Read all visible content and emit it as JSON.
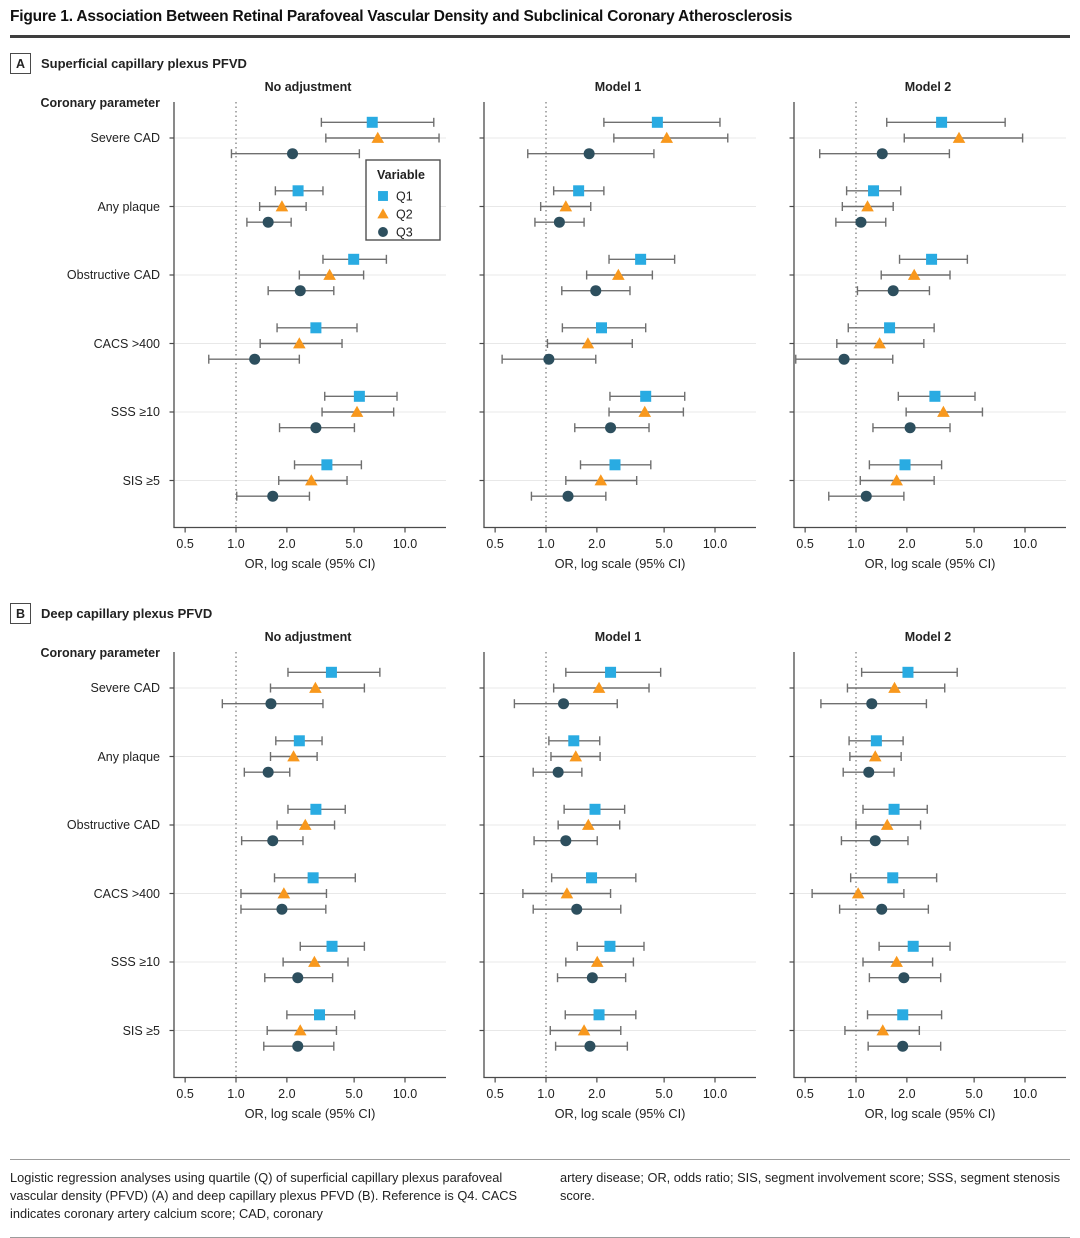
{
  "figure": {
    "title": "Figure 1. Association Between Retinal Parafoveal Vascular Density and Subclinical Coronary Atherosclerosis"
  },
  "row_header": "Coronary parameter",
  "legend": {
    "title": "Variable",
    "items": [
      {
        "label": "Q1",
        "marker": "square-icon"
      },
      {
        "label": "Q2",
        "marker": "triangle-icon"
      },
      {
        "label": "Q3",
        "marker": "circle-icon"
      }
    ]
  },
  "colors": {
    "q1": "#29abe2",
    "q2": "#f8981d",
    "q3": "#2d4f5e",
    "error_bar": "#6f6f6f",
    "grid": "#e8e8e8",
    "axis": "#4a4a4a",
    "reference_line": "#5a5a5a"
  },
  "axis": {
    "tick_values": [
      0.5,
      1,
      2,
      5,
      10
    ],
    "tick_labels": [
      "0.5",
      "1.0",
      "2.0",
      "5.0",
      "10.0"
    ],
    "label": "OR, log scale (95% CI)"
  },
  "footnote": {
    "left": "Logistic regression analyses using quartile (Q) of superficial capillary plexus parafoveal vascular density (PFVD) (A) and deep capillary plexus PFVD (B). Reference is Q4. CACS indicates coronary artery calcium score; CAD, coronary",
    "right": "artery disease; OR, odds ratio; SIS, segment involvement score; SSS, segment stenosis score."
  },
  "chart_data": [
    {
      "type": "forest",
      "panel": "A",
      "title": "Superficial capillary plexus PFVD",
      "xlabel": "OR, log scale (95% CI)",
      "x_scale": "log",
      "x_ticks": [
        0.5,
        1,
        2,
        5,
        10
      ],
      "reference_value": 1.0,
      "categories": [
        "Severe CAD",
        "Any plaque",
        "Obstructive CAD",
        "CACS >400",
        "SSS ≥10",
        "SIS ≥5"
      ],
      "models": [
        {
          "name": "No adjustment",
          "show_legend": true,
          "series": [
            {
              "name": "Q1",
              "or": [
                6.4,
                2.33,
                4.97,
                2.97,
                5.37,
                3.45
              ],
              "ci_low": [
                3.2,
                1.71,
                3.27,
                1.75,
                3.35,
                2.22
              ],
              "ci_high": [
                14.8,
                3.27,
                7.76,
                5.2,
                8.97,
                5.52
              ]
            },
            {
              "name": "Q2",
              "or": [
                6.9,
                1.87,
                3.58,
                2.37,
                5.2,
                2.79
              ],
              "ci_low": [
                3.4,
                1.38,
                2.37,
                1.39,
                3.23,
                1.79
              ],
              "ci_high": [
                15.9,
                2.6,
                5.69,
                4.24,
                8.57,
                4.54
              ]
            },
            {
              "name": "Q3",
              "or": [
                2.16,
                1.55,
                2.4,
                1.29,
                2.97,
                1.65
              ],
              "ci_low": [
                0.94,
                1.16,
                1.55,
                0.69,
                1.81,
                1.01
              ],
              "ci_high": [
                5.37,
                2.12,
                3.79,
                2.37,
                5.02,
                2.72
              ]
            }
          ]
        },
        {
          "name": "Model 1",
          "show_legend": false,
          "series": [
            {
              "name": "Q1",
              "or": [
                4.56,
                1.56,
                3.63,
                2.13,
                3.89,
                2.56
              ],
              "ci_low": [
                2.2,
                1.11,
                2.36,
                1.25,
                2.39,
                1.6
              ],
              "ci_high": [
                10.7,
                2.2,
                5.77,
                3.89,
                6.62,
                4.17
              ]
            },
            {
              "name": "Q2",
              "or": [
                5.18,
                1.31,
                2.68,
                1.77,
                3.84,
                2.11
              ],
              "ci_low": [
                2.52,
                0.93,
                1.74,
                1.02,
                2.36,
                1.31
              ],
              "ci_high": [
                11.9,
                1.84,
                4.26,
                3.24,
                6.5,
                3.44
              ]
            },
            {
              "name": "Q3",
              "or": [
                1.8,
                1.2,
                1.97,
                1.04,
                2.41,
                1.35
              ],
              "ci_low": [
                0.78,
                0.86,
                1.24,
                0.55,
                1.48,
                0.82
              ],
              "ci_high": [
                4.35,
                1.68,
                3.14,
                1.97,
                4.07,
                2.26
              ]
            }
          ]
        },
        {
          "name": "Model 2",
          "show_legend": false,
          "series": [
            {
              "name": "Q1",
              "or": [
                3.21,
                1.27,
                2.8,
                1.58,
                2.93,
                1.95
              ],
              "ci_low": [
                1.52,
                0.88,
                1.81,
                0.9,
                1.78,
                1.2
              ],
              "ci_high": [
                7.63,
                1.84,
                4.56,
                2.9,
                5.06,
                3.21
              ]
            },
            {
              "name": "Q2",
              "or": [
                4.07,
                1.17,
                2.21,
                1.38,
                3.29,
                1.74
              ],
              "ci_low": [
                1.93,
                0.83,
                1.41,
                0.77,
                1.98,
                1.06
              ],
              "ci_high": [
                9.68,
                1.66,
                3.6,
                2.52,
                5.6,
                2.9
              ]
            },
            {
              "name": "Q3",
              "or": [
                1.43,
                1.07,
                1.66,
                0.85,
                2.09,
                1.15
              ],
              "ci_low": [
                0.61,
                0.76,
                1.02,
                0.44,
                1.26,
                0.69
              ],
              "ci_high": [
                3.57,
                1.5,
                2.72,
                1.65,
                3.6,
                1.92
              ]
            }
          ]
        }
      ]
    },
    {
      "type": "forest",
      "panel": "B",
      "title": "Deep capillary plexus PFVD",
      "xlabel": "OR, log scale (95% CI)",
      "x_scale": "log",
      "x_ticks": [
        0.5,
        1,
        2,
        5,
        10
      ],
      "reference_value": 1.0,
      "categories": [
        "Severe CAD",
        "Any plaque",
        "Obstructive CAD",
        "CACS >400",
        "SSS ≥10",
        "SIS ≥5"
      ],
      "models": [
        {
          "name": "No adjustment",
          "show_legend": false,
          "series": [
            {
              "name": "Q1",
              "or": [
                3.67,
                2.37,
                2.97,
                2.86,
                3.7,
                3.12
              ],
              "ci_low": [
                2.03,
                1.72,
                2.03,
                1.69,
                2.4,
                2.0
              ],
              "ci_high": [
                7.1,
                3.23,
                4.43,
                5.08,
                5.75,
                5.04
              ]
            },
            {
              "name": "Q2",
              "or": [
                2.95,
                2.19,
                2.57,
                1.92,
                2.91,
                2.4
              ],
              "ci_low": [
                1.6,
                1.6,
                1.75,
                1.07,
                1.9,
                1.53
              ],
              "ci_high": [
                5.75,
                3.02,
                3.83,
                3.43,
                4.6,
                3.93
              ]
            },
            {
              "name": "Q3",
              "or": [
                1.61,
                1.55,
                1.65,
                1.87,
                2.32,
                2.32
              ],
              "ci_low": [
                0.83,
                1.12,
                1.08,
                1.07,
                1.48,
                1.46
              ],
              "ci_high": [
                3.27,
                2.08,
                2.49,
                3.4,
                3.73,
                3.79
              ]
            }
          ]
        },
        {
          "name": "Model 1",
          "show_legend": false,
          "series": [
            {
              "name": "Q1",
              "or": [
                2.41,
                1.46,
                1.95,
                1.86,
                2.39,
                2.06
              ],
              "ci_low": [
                1.31,
                1.04,
                1.28,
                1.08,
                1.53,
                1.3
              ],
              "ci_high": [
                4.77,
                2.08,
                2.92,
                3.4,
                3.8,
                3.4
              ]
            },
            {
              "name": "Q2",
              "or": [
                2.06,
                1.5,
                1.78,
                1.33,
                2.01,
                1.68
              ],
              "ci_low": [
                1.11,
                1.07,
                1.18,
                0.73,
                1.31,
                1.06
              ],
              "ci_high": [
                4.07,
                2.09,
                2.73,
                2.41,
                3.29,
                2.77
              ]
            },
            {
              "name": "Q3",
              "or": [
                1.27,
                1.18,
                1.31,
                1.52,
                1.88,
                1.82
              ],
              "ci_low": [
                0.65,
                0.84,
                0.85,
                0.84,
                1.17,
                1.14
              ],
              "ci_high": [
                2.64,
                1.63,
                2.01,
                2.77,
                2.96,
                3.03
              ]
            }
          ]
        },
        {
          "name": "Model 2",
          "show_legend": false,
          "series": [
            {
              "name": "Q1",
              "or": [
                2.03,
                1.32,
                1.68,
                1.65,
                2.18,
                1.89
              ],
              "ci_low": [
                1.08,
                0.91,
                1.1,
                0.93,
                1.37,
                1.17
              ],
              "ci_high": [
                3.97,
                1.9,
                2.64,
                3.0,
                3.6,
                3.21
              ]
            },
            {
              "name": "Q2",
              "or": [
                1.69,
                1.3,
                1.53,
                1.03,
                1.74,
                1.44
              ],
              "ci_low": [
                0.89,
                0.92,
                1.0,
                0.55,
                1.1,
                0.86
              ],
              "ci_high": [
                3.35,
                1.85,
                2.41,
                1.92,
                2.84,
                2.37
              ]
            },
            {
              "name": "Q3",
              "or": [
                1.24,
                1.19,
                1.3,
                1.42,
                1.92,
                1.89
              ],
              "ci_low": [
                0.62,
                0.84,
                0.82,
                0.8,
                1.2,
                1.18
              ],
              "ci_high": [
                2.61,
                1.68,
                2.03,
                2.68,
                3.17,
                3.17
              ]
            }
          ]
        }
      ]
    }
  ]
}
